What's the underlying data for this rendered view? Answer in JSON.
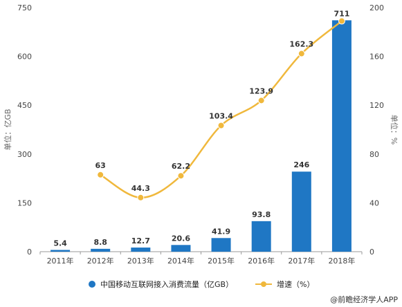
{
  "chart_data": {
    "type": "bar",
    "categories": [
      "2011年",
      "2012年",
      "2013年",
      "2014年",
      "2015年",
      "2016年",
      "2017年",
      "2018年"
    ],
    "series": [
      {
        "name": "中国移动互联网接入消费流量（亿GB）",
        "type": "bar",
        "axis": "left",
        "color": "#1f77c4",
        "values": [
          5.4,
          8.8,
          12.7,
          20.6,
          41.9,
          93.8,
          246,
          711
        ],
        "labels": [
          "5.4",
          "8.8",
          "12.7",
          "20.6",
          "41.9",
          "93.8",
          "246",
          "711"
        ]
      },
      {
        "name": "增速（%）",
        "type": "line",
        "axis": "right",
        "color": "#f0b83c",
        "values": [
          null,
          63,
          44.3,
          62.2,
          103.4,
          123.9,
          162.3,
          189
        ],
        "labels": [
          "",
          "63",
          "44.3",
          "62.2",
          "103.4",
          "123.9",
          "162.3",
          ""
        ]
      }
    ],
    "ylabel": "单位：亿GB",
    "y2label": "单位：%",
    "ylim": [
      0,
      750
    ],
    "yticks": [
      "0",
      "150",
      "300",
      "450",
      "600",
      "750"
    ],
    "y2lim": [
      0,
      200
    ],
    "y2ticks": [
      "0",
      "40",
      "80",
      "120",
      "160",
      "200"
    ],
    "grid": false,
    "legend": "bottom"
  },
  "footer": {
    "credit": "@前瞻经济学人APP"
  }
}
